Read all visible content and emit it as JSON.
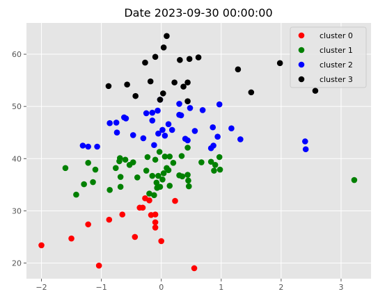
{
  "chart_data": {
    "type": "scatter",
    "title": "Date 2023-09-30 00:00:00",
    "xlabel": "",
    "ylabel": "",
    "xlim": [
      -2.25,
      3.5
    ],
    "ylim": [
      17,
      66
    ],
    "xticks": [
      -2,
      -1,
      0,
      1,
      2,
      3
    ],
    "yticks": [
      20,
      30,
      40,
      50,
      60
    ],
    "grid": true,
    "legend_position": "top-right",
    "colors": {
      "background": "#e5e5e5",
      "grid": "#ffffff",
      "cluster 0": "#ff0000",
      "cluster 1": "#008000",
      "cluster 2": "#0000ff",
      "cluster 3": "#000000"
    },
    "series": [
      {
        "name": "cluster 0",
        "color": "#ff0000",
        "points": [
          [
            -2.0,
            23.4
          ],
          [
            -1.5,
            24.7
          ],
          [
            -1.22,
            27.4
          ],
          [
            -1.04,
            19.5
          ],
          [
            -0.87,
            28.3
          ],
          [
            -0.65,
            29.3
          ],
          [
            -0.44,
            25.0
          ],
          [
            -0.36,
            30.6
          ],
          [
            -0.31,
            30.6
          ],
          [
            -0.27,
            32.4
          ],
          [
            -0.2,
            32.0
          ],
          [
            -0.17,
            29.2
          ],
          [
            -0.1,
            29.3
          ],
          [
            -0.1,
            27.8
          ],
          [
            -0.1,
            26.8
          ],
          [
            0.0,
            24.2
          ],
          [
            0.23,
            31.9
          ],
          [
            0.55,
            19.0
          ]
        ]
      },
      {
        "name": "cluster 1",
        "color": "#008000",
        "points": [
          [
            -1.6,
            38.2
          ],
          [
            -1.42,
            33.1
          ],
          [
            -1.29,
            35.1
          ],
          [
            -1.22,
            39.2
          ],
          [
            -1.14,
            35.5
          ],
          [
            -1.1,
            37.9
          ],
          [
            -0.86,
            34.0
          ],
          [
            -0.76,
            38.2
          ],
          [
            -0.7,
            39.5
          ],
          [
            -0.69,
            40.1
          ],
          [
            -0.68,
            36.5
          ],
          [
            -0.68,
            34.6
          ],
          [
            -0.6,
            39.8
          ],
          [
            -0.53,
            38.8
          ],
          [
            -0.47,
            39.3
          ],
          [
            -0.4,
            36.4
          ],
          [
            -0.25,
            37.7
          ],
          [
            -0.23,
            40.3
          ],
          [
            -0.2,
            33.3
          ],
          [
            -0.15,
            36.7
          ],
          [
            -0.12,
            33.0
          ],
          [
            -0.1,
            39.8
          ],
          [
            -0.08,
            35.4
          ],
          [
            -0.07,
            34.4
          ],
          [
            -0.05,
            36.7
          ],
          [
            -0.03,
            41.3
          ],
          [
            -0.02,
            34.6
          ],
          [
            0.02,
            36.0
          ],
          [
            0.04,
            37.2
          ],
          [
            0.06,
            40.4
          ],
          [
            0.09,
            38.2
          ],
          [
            0.12,
            37.8
          ],
          [
            0.14,
            34.8
          ],
          [
            0.14,
            40.4
          ],
          [
            0.2,
            39.2
          ],
          [
            0.3,
            36.8
          ],
          [
            0.34,
            40.5
          ],
          [
            0.35,
            36.6
          ],
          [
            0.44,
            36.9
          ],
          [
            0.44,
            42.1
          ],
          [
            0.45,
            35.8
          ],
          [
            0.46,
            34.7
          ],
          [
            0.67,
            39.3
          ],
          [
            0.83,
            39.4
          ],
          [
            0.88,
            37.7
          ],
          [
            0.9,
            38.8
          ],
          [
            0.97,
            40.3
          ],
          [
            0.98,
            37.9
          ],
          [
            3.22,
            35.9
          ]
        ]
      },
      {
        "name": "cluster 2",
        "color": "#0000ff",
        "points": [
          [
            -1.31,
            42.5
          ],
          [
            -1.22,
            42.3
          ],
          [
            -1.07,
            42.3
          ],
          [
            -0.86,
            46.8
          ],
          [
            -0.75,
            46.9
          ],
          [
            -0.74,
            45.0
          ],
          [
            -0.62,
            47.9
          ],
          [
            -0.59,
            47.7
          ],
          [
            -0.47,
            44.5
          ],
          [
            -0.3,
            43.9
          ],
          [
            -0.25,
            48.7
          ],
          [
            -0.15,
            47.3
          ],
          [
            -0.15,
            48.8
          ],
          [
            -0.12,
            42.6
          ],
          [
            -0.06,
            49.2
          ],
          [
            -0.05,
            44.8
          ],
          [
            -0.02,
            51.3
          ],
          [
            0.02,
            45.5
          ],
          [
            0.06,
            44.4
          ],
          [
            0.12,
            46.6
          ],
          [
            0.18,
            45.5
          ],
          [
            0.3,
            50.5
          ],
          [
            0.3,
            48.4
          ],
          [
            0.33,
            48.3
          ],
          [
            0.4,
            43.8
          ],
          [
            0.44,
            43.5
          ],
          [
            0.48,
            49.7
          ],
          [
            0.56,
            45.3
          ],
          [
            0.69,
            49.3
          ],
          [
            0.83,
            42.0
          ],
          [
            0.86,
            46.0
          ],
          [
            0.87,
            42.5
          ],
          [
            0.94,
            44.2
          ],
          [
            0.97,
            50.4
          ],
          [
            1.17,
            45.8
          ],
          [
            1.32,
            43.7
          ],
          [
            2.4,
            43.3
          ],
          [
            2.41,
            41.8
          ]
        ]
      },
      {
        "name": "cluster 3",
        "color": "#000000",
        "points": [
          [
            -0.88,
            53.9
          ],
          [
            -0.57,
            54.2
          ],
          [
            -0.43,
            52.0
          ],
          [
            -0.27,
            58.4
          ],
          [
            -0.18,
            54.8
          ],
          [
            -0.1,
            59.5
          ],
          [
            -0.02,
            51.3
          ],
          [
            0.03,
            52.5
          ],
          [
            0.04,
            61.3
          ],
          [
            0.09,
            63.5
          ],
          [
            0.22,
            54.6
          ],
          [
            0.31,
            58.9
          ],
          [
            0.37,
            53.8
          ],
          [
            0.44,
            54.6
          ],
          [
            0.47,
            59.1
          ],
          [
            0.44,
            51.0
          ],
          [
            0.62,
            59.4
          ],
          [
            1.28,
            57.1
          ],
          [
            1.5,
            52.7
          ],
          [
            1.98,
            58.3
          ],
          [
            2.57,
            53.0
          ]
        ]
      }
    ]
  }
}
